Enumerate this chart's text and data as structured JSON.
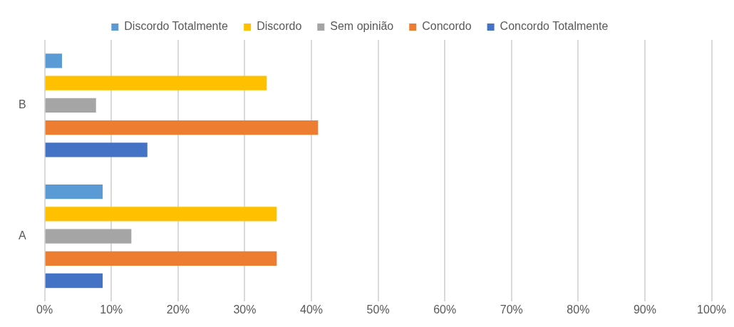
{
  "chart_data": {
    "type": "bar",
    "orientation": "horizontal",
    "categories": [
      "B",
      "A"
    ],
    "series": [
      {
        "name": "Discordo Totalmente",
        "color": "#5b9bd5",
        "values": [
          2.6,
          8.7
        ]
      },
      {
        "name": "Discordo",
        "color": "#ffc000",
        "values": [
          33.3,
          34.8
        ]
      },
      {
        "name": "Sem opinião",
        "color": "#a5a5a5",
        "values": [
          7.7,
          13.0
        ]
      },
      {
        "name": "Concordo",
        "color": "#ed7d31",
        "values": [
          41.0,
          34.8
        ]
      },
      {
        "name": "Concordo Totalmente",
        "color": "#4472c4",
        "values": [
          15.4,
          8.7
        ]
      }
    ],
    "xlim": [
      0,
      100
    ],
    "xticks": [
      {
        "value": 0,
        "label": "0%"
      },
      {
        "value": 10,
        "label": "10%"
      },
      {
        "value": 20,
        "label": "20%"
      },
      {
        "value": 30,
        "label": "30%"
      },
      {
        "value": 40,
        "label": "40%"
      },
      {
        "value": 50,
        "label": "50%"
      },
      {
        "value": 60,
        "label": "60%"
      },
      {
        "value": 70,
        "label": "70%"
      },
      {
        "value": 80,
        "label": "80%"
      },
      {
        "value": 90,
        "label": "90%"
      },
      {
        "value": 100,
        "label": "100%"
      }
    ],
    "grid": "x",
    "legend": "top"
  }
}
